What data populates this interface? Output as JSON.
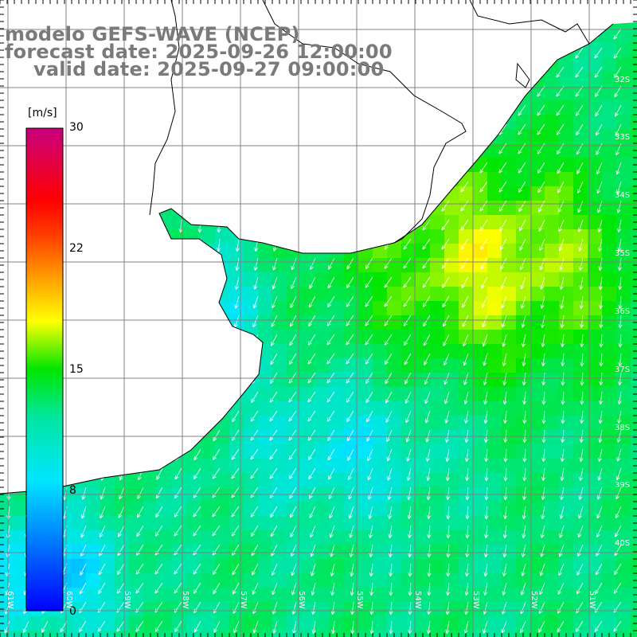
{
  "title": {
    "line1": "modelo GEFS-WAVE (NCEP)",
    "line2": "forecast date: 2025-09-26 12:00:00",
    "line3": "valid date: 2025-09-27 09:00:00"
  },
  "colorbar": {
    "unit": "[m/s]",
    "ticks": [
      "30",
      "22",
      "15",
      "8",
      "0"
    ],
    "range": [
      0,
      30
    ],
    "colors": [
      "#0000ff",
      "#00e6ff",
      "#00e600",
      "#ffff00",
      "#ff0000",
      "#c8007d"
    ]
  },
  "map": {
    "lat_labels": [
      "32S",
      "33S",
      "34S",
      "35S",
      "36S",
      "37S",
      "38S",
      "39S",
      "40S"
    ],
    "lon_labels": [
      "61W",
      "60W",
      "59W",
      "58W",
      "57W",
      "56W",
      "55W",
      "54W",
      "53W",
      "52W",
      "51W"
    ],
    "land_color": "#ffffff",
    "grid_color": "#808080",
    "coast_color": "#000000",
    "wind_arrow_color": "#ffffff",
    "wind_direction": "NE to SW (arrows point south-southwest)"
  }
}
